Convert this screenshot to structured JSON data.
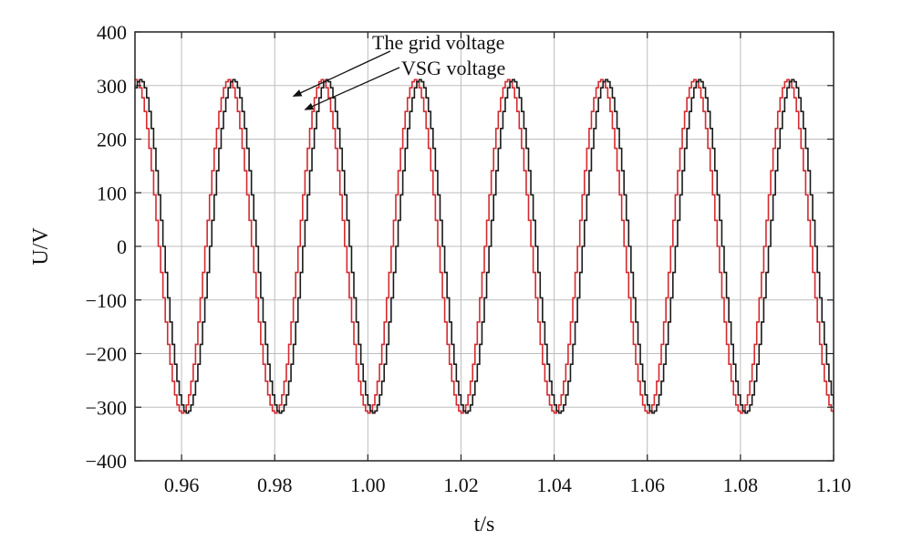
{
  "chart_data": {
    "type": "line",
    "title": "",
    "xlabel": "t/s",
    "ylabel": "U/V",
    "xlim": [
      0.95,
      1.1
    ],
    "ylim": [
      -400,
      400
    ],
    "xticks": [
      0.96,
      0.98,
      1.0,
      1.02,
      1.04,
      1.06,
      1.08,
      1.1
    ],
    "xtick_labels": [
      "0.96",
      "0.98",
      "1.00",
      "1.02",
      "1.04",
      "1.06",
      "1.08",
      "1.10"
    ],
    "yticks": [
      400,
      300,
      200,
      100,
      0,
      -100,
      -200,
      -300,
      -400
    ],
    "ytick_labels": [
      "400",
      "300",
      "200",
      "100",
      "0",
      "−100",
      "−200",
      "−300",
      "−400"
    ],
    "grid": true,
    "legend": "none",
    "series": [
      {
        "color": "#d42a2f",
        "amplitude": 311,
        "frequency_hz": 50,
        "phase_deg": -90,
        "step_s": 0.0005,
        "peak_times": [
          0.9655,
          0.9855,
          1.0055,
          1.0255,
          1.0455,
          1.0655,
          1.0855
        ]
      },
      {
        "color": "#1a1a1a",
        "amplitude": 311,
        "frequency_hz": 50,
        "phase_deg": -108,
        "step_s": 0.0005,
        "peak_times": [
          0.966,
          0.986,
          1.006,
          1.026,
          1.046,
          1.066,
          1.086
        ]
      }
    ],
    "annotations": [
      {
        "text": "The grid voltage",
        "arrow_to": [
          0.984,
          280
        ]
      },
      {
        "text": "VSG voltage",
        "arrow_to": [
          0.9865,
          255
        ]
      }
    ]
  }
}
